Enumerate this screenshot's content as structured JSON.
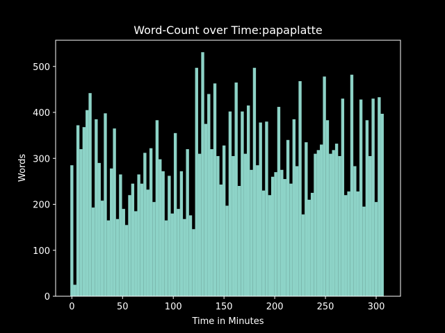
{
  "chart_data": {
    "type": "bar",
    "title": "Word-Count over Time:papaplatte",
    "x_label": "Time in Minutes",
    "y_label": "Words",
    "color": "#8dd3c7",
    "bar_width": 3,
    "x": [
      0,
      3,
      6,
      9,
      12,
      15,
      18,
      21,
      24,
      27,
      30,
      33,
      36,
      39,
      42,
      45,
      48,
      51,
      54,
      57,
      60,
      63,
      66,
      69,
      72,
      75,
      78,
      81,
      84,
      87,
      90,
      93,
      96,
      99,
      102,
      105,
      108,
      111,
      114,
      117,
      120,
      123,
      126,
      129,
      132,
      135,
      138,
      141,
      144,
      147,
      150,
      153,
      156,
      159,
      162,
      165,
      168,
      171,
      174,
      177,
      180,
      183,
      186,
      189,
      192,
      195,
      198,
      201,
      204,
      207,
      210,
      213,
      216,
      219,
      222,
      225,
      228,
      231,
      234,
      237,
      240,
      243,
      246,
      249,
      252,
      255,
      258,
      261,
      264,
      267,
      270,
      273,
      276,
      279,
      282,
      285,
      288,
      291,
      294,
      297,
      300,
      303,
      306
    ],
    "values": [
      285,
      25,
      372,
      320,
      368,
      405,
      442,
      193,
      385,
      290,
      208,
      398,
      165,
      278,
      365,
      168,
      265,
      190,
      155,
      220,
      245,
      185,
      265,
      245,
      312,
      232,
      322,
      205,
      383,
      298,
      272,
      165,
      262,
      180,
      355,
      190,
      272,
      168,
      320,
      176,
      146,
      497,
      310,
      531,
      375,
      440,
      320,
      463,
      305,
      243,
      328,
      197,
      402,
      305,
      465,
      240,
      402,
      310,
      415,
      275,
      497,
      285,
      378,
      230,
      380,
      220,
      260,
      270,
      412,
      275,
      255,
      340,
      245,
      385,
      283,
      468,
      178,
      335,
      210,
      225,
      310,
      318,
      330,
      478,
      383,
      310,
      318,
      332,
      305,
      430,
      220,
      228,
      482,
      283,
      228,
      428,
      195,
      383,
      305,
      430,
      205,
      433,
      397
    ],
    "xlim": [
      -16,
      324
    ],
    "ylim": [
      0,
      557
    ],
    "xticks": [
      0,
      50,
      100,
      150,
      200,
      250,
      300
    ],
    "yticks": [
      0,
      100,
      200,
      300,
      400,
      500
    ]
  }
}
